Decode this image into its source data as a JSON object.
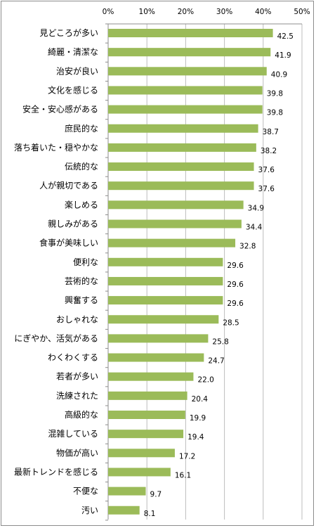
{
  "chart_data": {
    "type": "bar",
    "orientation": "horizontal",
    "title": "",
    "xlabel": "",
    "ylabel": "",
    "xlim": [
      0,
      50
    ],
    "x_ticks": [
      "0%",
      "10%",
      "20%",
      "30%",
      "40%",
      "50%"
    ],
    "x_tick_values": [
      0,
      10,
      20,
      30,
      40,
      50
    ],
    "x_axis_position": "top",
    "grid": true,
    "legend": "none",
    "bar_color": "#9bbb59",
    "categories": [
      "見どころが多い",
      "綺麗・清潔な",
      "治安が良い",
      "文化を感じる",
      "安全・安心感がある",
      "庶民的な",
      "落ち着いた・穏やかな",
      "伝統的な",
      "人が親切である",
      "楽しめる",
      "親しみがある",
      "食事が美味しい",
      "便利な",
      "芸術的な",
      "興奮する",
      "おしゃれな",
      "にぎやか、活気がある",
      "わくわくする",
      "若者が多い",
      "洗練された",
      "高級的な",
      "混雑している",
      "物価が高い",
      "最新トレンドを感じる",
      "不便な",
      "汚い"
    ],
    "values": [
      42.5,
      41.9,
      40.9,
      39.8,
      39.8,
      38.7,
      38.2,
      37.6,
      37.6,
      34.9,
      34.4,
      32.8,
      29.6,
      29.6,
      29.6,
      28.5,
      25.8,
      24.7,
      22.0,
      20.4,
      19.9,
      19.4,
      17.2,
      16.1,
      9.7,
      8.1
    ],
    "value_labels": [
      "42.5",
      "41.9",
      "40.9",
      "39.8",
      "39.8",
      "38.7",
      "38.2",
      "37.6",
      "37.6",
      "34.9",
      "34.4",
      "32.8",
      "29.6",
      "29.6",
      "29.6",
      "28.5",
      "25.8",
      "24.7",
      "22.0",
      "20.4",
      "19.9",
      "19.4",
      "17.2",
      "16.1",
      "9.7",
      "8.1"
    ]
  }
}
